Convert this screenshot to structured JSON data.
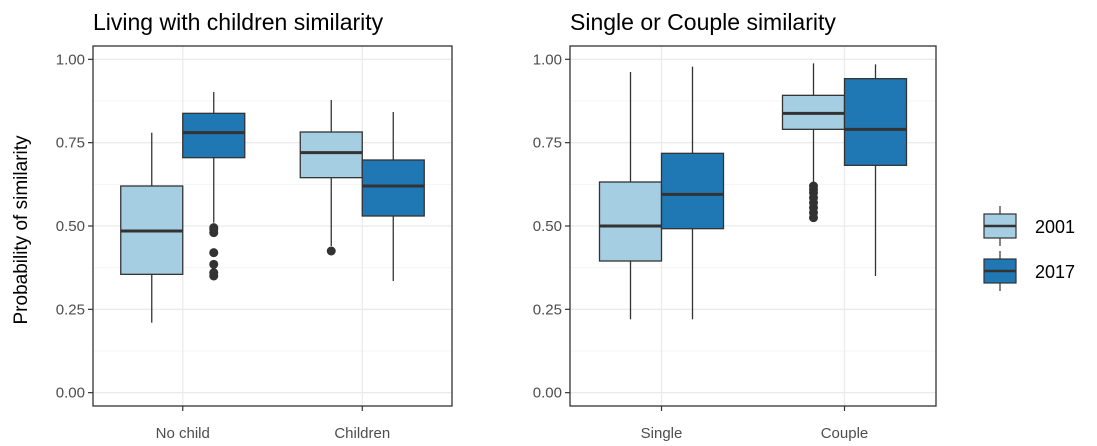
{
  "ylabel": "Probability of similarity",
  "legend": {
    "placement": "right",
    "items": [
      {
        "label": "2001",
        "color": "#a6cee3"
      },
      {
        "label": "2017",
        "color": "#1f78b4"
      }
    ]
  },
  "chart_data": [
    {
      "type": "box",
      "title": "Living with children similarity",
      "categories": [
        "No child",
        "Children"
      ],
      "ylim": [
        -0.04,
        1.04
      ],
      "yticks": [
        "0.00",
        "0.25",
        "0.50",
        "0.75",
        "1.00"
      ],
      "grid": true,
      "series": [
        {
          "name": "2001",
          "boxes": [
            {
              "category": "No child",
              "min": 0.21,
              "q1": 0.355,
              "median": 0.485,
              "q3": 0.62,
              "max": 0.78,
              "outliers": []
            },
            {
              "category": "Children",
              "min": 0.44,
              "q1": 0.645,
              "median": 0.72,
              "q3": 0.782,
              "max": 0.878,
              "outliers": [
                0.425
              ]
            }
          ]
        },
        {
          "name": "2017",
          "boxes": [
            {
              "category": "No child",
              "min": 0.51,
              "q1": 0.705,
              "median": 0.78,
              "q3": 0.838,
              "max": 0.902,
              "outliers": [
                0.35,
                0.36,
                0.385,
                0.42,
                0.48,
                0.49,
                0.495
              ]
            },
            {
              "category": "Children",
              "min": 0.335,
              "q1": 0.53,
              "median": 0.62,
              "q3": 0.698,
              "max": 0.842,
              "outliers": []
            }
          ]
        }
      ]
    },
    {
      "type": "box",
      "title": "Single or Couple similarity",
      "categories": [
        "Single",
        "Couple"
      ],
      "ylim": [
        -0.04,
        1.04
      ],
      "yticks": [
        "0.00",
        "0.25",
        "0.50",
        "0.75",
        "1.00"
      ],
      "grid": true,
      "series": [
        {
          "name": "2001",
          "boxes": [
            {
              "category": "Single",
              "min": 0.22,
              "q1": 0.395,
              "median": 0.5,
              "q3": 0.632,
              "max": 0.962,
              "outliers": []
            },
            {
              "category": "Couple",
              "min": 0.63,
              "q1": 0.79,
              "median": 0.838,
              "q3": 0.892,
              "max": 0.988,
              "outliers": [
                0.525,
                0.54,
                0.555,
                0.57,
                0.585,
                0.6,
                0.61,
                0.62
              ]
            }
          ]
        },
        {
          "name": "2017",
          "boxes": [
            {
              "category": "Single",
              "min": 0.22,
              "q1": 0.492,
              "median": 0.595,
              "q3": 0.718,
              "max": 0.978,
              "outliers": []
            },
            {
              "category": "Couple",
              "min": 0.35,
              "q1": 0.682,
              "median": 0.79,
              "q3": 0.942,
              "max": 0.985,
              "outliers": []
            }
          ]
        }
      ]
    }
  ]
}
